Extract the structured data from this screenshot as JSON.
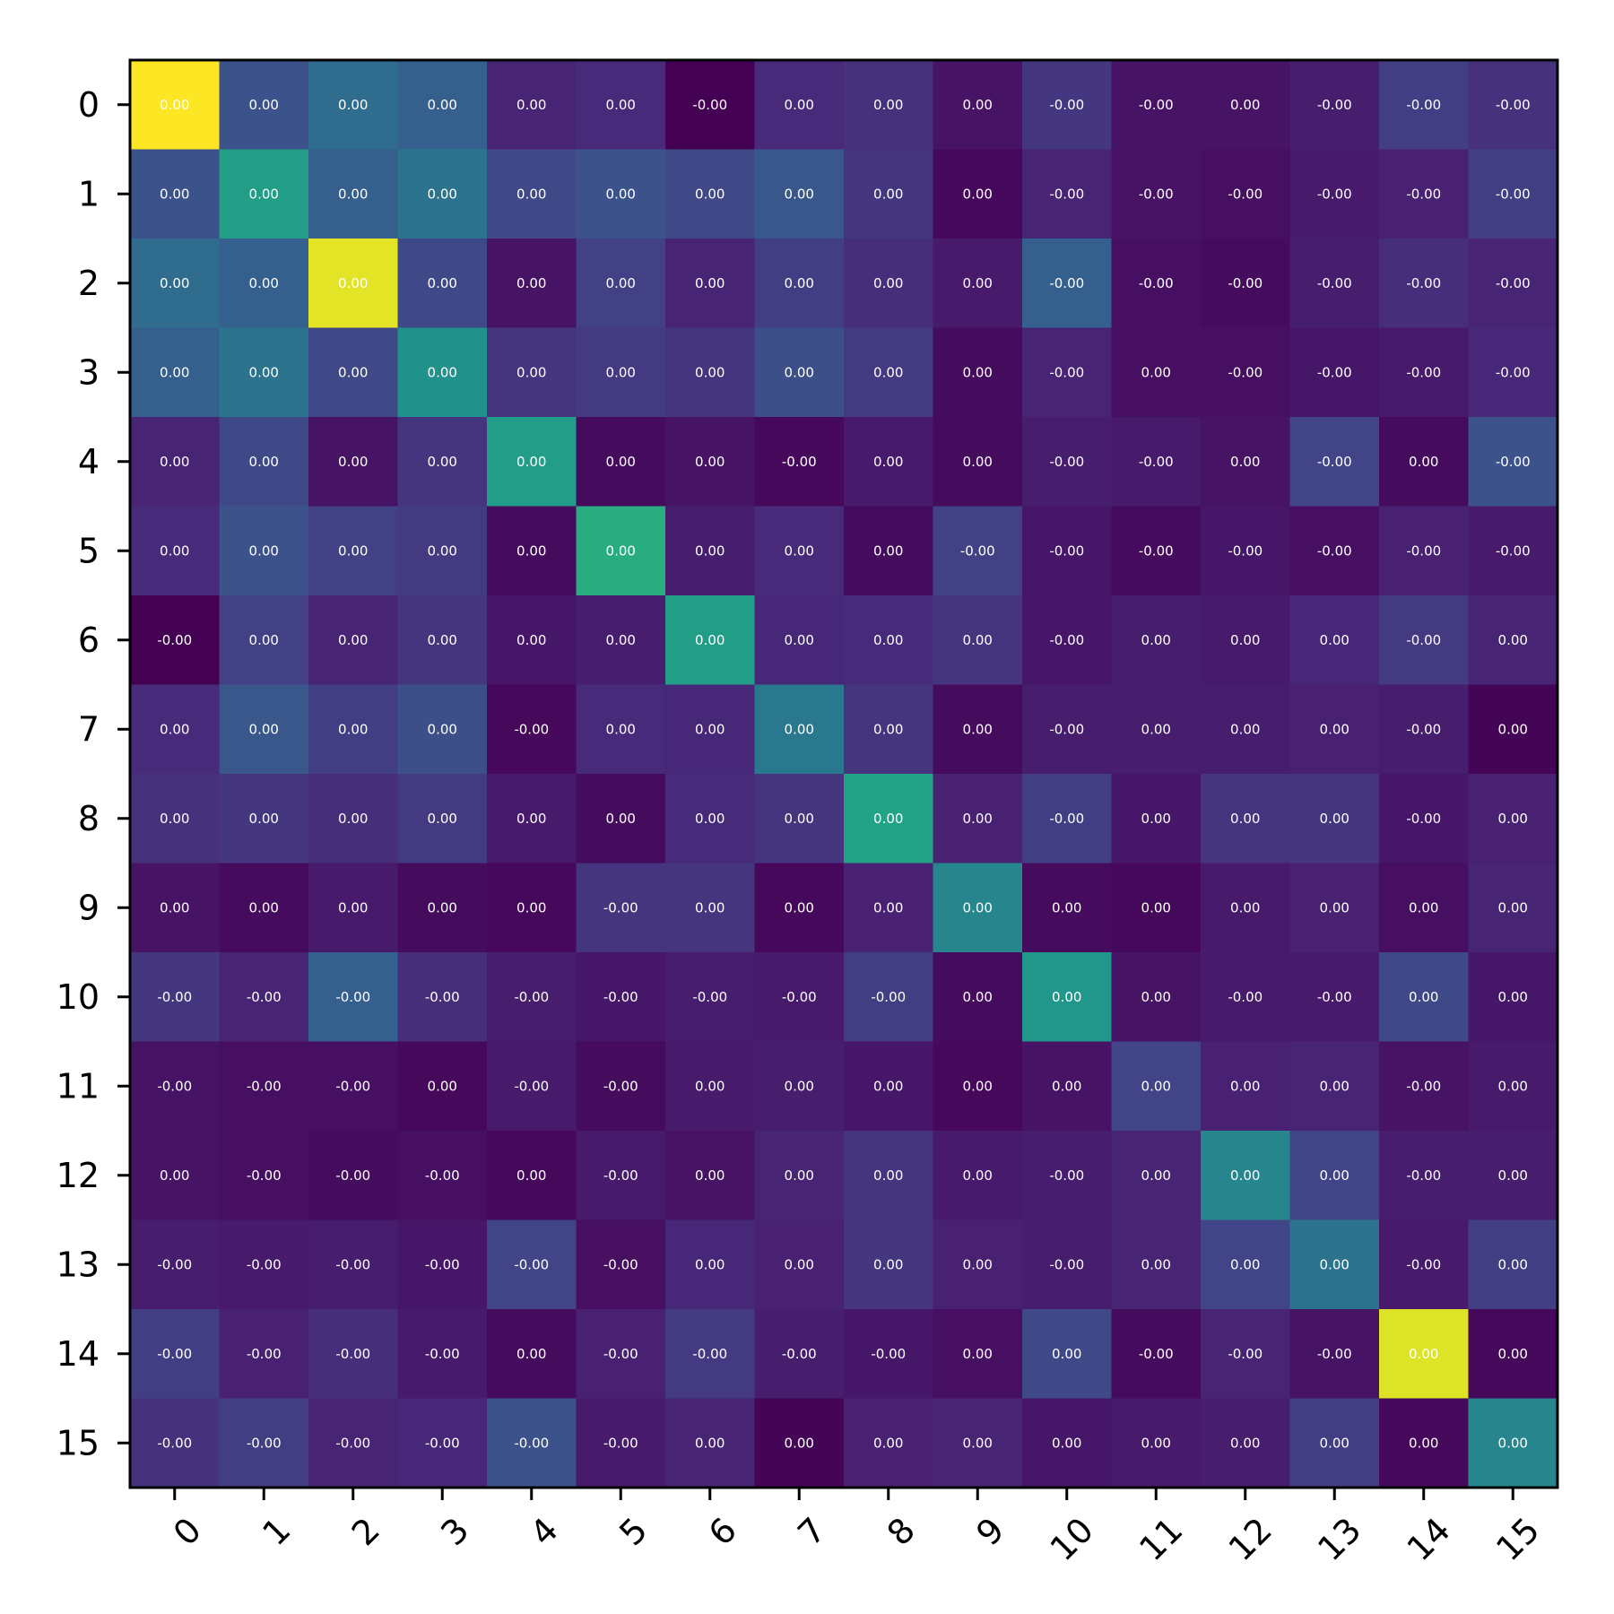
{
  "chart_data": {
    "type": "heatmap",
    "colormap": "viridis",
    "grid": false,
    "x_tick_labels": [
      "0",
      "1",
      "2",
      "3",
      "4",
      "5",
      "6",
      "7",
      "8",
      "9",
      "10",
      "11",
      "12",
      "13",
      "14",
      "15"
    ],
    "y_tick_labels": [
      "0",
      "1",
      "2",
      "3",
      "4",
      "5",
      "6",
      "7",
      "8",
      "9",
      "10",
      "11",
      "12",
      "13",
      "14",
      "15"
    ],
    "color_values": [
      [
        1.0,
        0.25,
        0.35,
        0.3,
        0.1,
        0.12,
        0.0,
        0.12,
        0.14,
        0.05,
        0.16,
        0.05,
        0.05,
        0.08,
        0.18,
        0.14
      ],
      [
        0.25,
        0.55,
        0.3,
        0.38,
        0.22,
        0.25,
        0.22,
        0.27,
        0.16,
        0.02,
        0.1,
        0.05,
        0.04,
        0.07,
        0.09,
        0.18
      ],
      [
        0.35,
        0.3,
        0.96,
        0.22,
        0.05,
        0.19,
        0.1,
        0.18,
        0.13,
        0.07,
        0.3,
        0.04,
        0.03,
        0.08,
        0.13,
        0.1
      ],
      [
        0.3,
        0.38,
        0.22,
        0.5,
        0.15,
        0.17,
        0.15,
        0.24,
        0.17,
        0.03,
        0.1,
        0.04,
        0.04,
        0.06,
        0.07,
        0.11
      ],
      [
        0.1,
        0.22,
        0.05,
        0.15,
        0.55,
        0.03,
        0.05,
        0.02,
        0.07,
        0.03,
        0.08,
        0.07,
        0.05,
        0.2,
        0.03,
        0.25
      ],
      [
        0.12,
        0.25,
        0.19,
        0.17,
        0.03,
        0.62,
        0.08,
        0.12,
        0.03,
        0.19,
        0.06,
        0.03,
        0.06,
        0.04,
        0.09,
        0.07
      ],
      [
        0.0,
        0.19,
        0.1,
        0.15,
        0.06,
        0.08,
        0.55,
        0.11,
        0.12,
        0.15,
        0.06,
        0.08,
        0.07,
        0.11,
        0.17,
        0.1
      ],
      [
        0.12,
        0.27,
        0.18,
        0.24,
        0.02,
        0.12,
        0.11,
        0.4,
        0.15,
        0.03,
        0.08,
        0.08,
        0.08,
        0.09,
        0.08,
        0.01
      ],
      [
        0.14,
        0.16,
        0.13,
        0.17,
        0.07,
        0.03,
        0.12,
        0.15,
        0.58,
        0.09,
        0.18,
        0.06,
        0.15,
        0.16,
        0.06,
        0.09
      ],
      [
        0.05,
        0.03,
        0.07,
        0.03,
        0.02,
        0.15,
        0.15,
        0.02,
        0.09,
        0.45,
        0.03,
        0.02,
        0.07,
        0.09,
        0.04,
        0.1
      ],
      [
        0.16,
        0.1,
        0.3,
        0.13,
        0.08,
        0.06,
        0.08,
        0.07,
        0.18,
        0.03,
        0.52,
        0.05,
        0.07,
        0.07,
        0.22,
        0.06
      ],
      [
        0.05,
        0.04,
        0.04,
        0.02,
        0.07,
        0.03,
        0.07,
        0.08,
        0.06,
        0.02,
        0.05,
        0.2,
        0.09,
        0.1,
        0.05,
        0.07
      ],
      [
        0.05,
        0.04,
        0.03,
        0.04,
        0.02,
        0.07,
        0.05,
        0.1,
        0.15,
        0.07,
        0.08,
        0.1,
        0.45,
        0.2,
        0.08,
        0.08
      ],
      [
        0.08,
        0.07,
        0.08,
        0.06,
        0.2,
        0.04,
        0.11,
        0.09,
        0.16,
        0.09,
        0.08,
        0.1,
        0.2,
        0.38,
        0.07,
        0.18
      ],
      [
        0.18,
        0.09,
        0.13,
        0.07,
        0.03,
        0.09,
        0.17,
        0.08,
        0.06,
        0.04,
        0.22,
        0.03,
        0.1,
        0.05,
        0.95,
        0.02
      ],
      [
        0.14,
        0.18,
        0.1,
        0.11,
        0.25,
        0.07,
        0.1,
        0.01,
        0.09,
        0.1,
        0.06,
        0.07,
        0.08,
        0.18,
        0.02,
        0.45
      ]
    ],
    "cell_labels": [
      [
        "0.00",
        "0.00",
        "0.00",
        "0.00",
        "0.00",
        "0.00",
        "-0.00",
        "0.00",
        "0.00",
        "0.00",
        "-0.00",
        "-0.00",
        "0.00",
        "-0.00",
        "-0.00",
        "-0.00"
      ],
      [
        "0.00",
        "0.00",
        "0.00",
        "0.00",
        "0.00",
        "0.00",
        "0.00",
        "0.00",
        "0.00",
        "0.00",
        "-0.00",
        "-0.00",
        "-0.00",
        "-0.00",
        "-0.00",
        "-0.00"
      ],
      [
        "0.00",
        "0.00",
        "0.00",
        "0.00",
        "0.00",
        "0.00",
        "0.00",
        "0.00",
        "0.00",
        "0.00",
        "-0.00",
        "-0.00",
        "-0.00",
        "-0.00",
        "-0.00",
        "-0.00"
      ],
      [
        "0.00",
        "0.00",
        "0.00",
        "0.00",
        "0.00",
        "0.00",
        "0.00",
        "0.00",
        "0.00",
        "0.00",
        "-0.00",
        "0.00",
        "-0.00",
        "-0.00",
        "-0.00",
        "-0.00"
      ],
      [
        "0.00",
        "0.00",
        "0.00",
        "0.00",
        "0.00",
        "0.00",
        "0.00",
        "-0.00",
        "0.00",
        "0.00",
        "-0.00",
        "-0.00",
        "0.00",
        "-0.00",
        "0.00",
        "-0.00"
      ],
      [
        "0.00",
        "0.00",
        "0.00",
        "0.00",
        "0.00",
        "0.00",
        "0.00",
        "0.00",
        "0.00",
        "-0.00",
        "-0.00",
        "-0.00",
        "-0.00",
        "-0.00",
        "-0.00",
        "-0.00"
      ],
      [
        "-0.00",
        "0.00",
        "0.00",
        "0.00",
        "0.00",
        "0.00",
        "0.00",
        "0.00",
        "0.00",
        "0.00",
        "-0.00",
        "0.00",
        "0.00",
        "0.00",
        "-0.00",
        "0.00"
      ],
      [
        "0.00",
        "0.00",
        "0.00",
        "0.00",
        "-0.00",
        "0.00",
        "0.00",
        "0.00",
        "0.00",
        "0.00",
        "-0.00",
        "0.00",
        "0.00",
        "0.00",
        "-0.00",
        "0.00"
      ],
      [
        "0.00",
        "0.00",
        "0.00",
        "0.00",
        "0.00",
        "0.00",
        "0.00",
        "0.00",
        "0.00",
        "0.00",
        "-0.00",
        "0.00",
        "0.00",
        "0.00",
        "-0.00",
        "0.00"
      ],
      [
        "0.00",
        "0.00",
        "0.00",
        "0.00",
        "0.00",
        "-0.00",
        "0.00",
        "0.00",
        "0.00",
        "0.00",
        "0.00",
        "0.00",
        "0.00",
        "0.00",
        "0.00",
        "0.00"
      ],
      [
        "-0.00",
        "-0.00",
        "-0.00",
        "-0.00",
        "-0.00",
        "-0.00",
        "-0.00",
        "-0.00",
        "-0.00",
        "0.00",
        "0.00",
        "0.00",
        "-0.00",
        "-0.00",
        "0.00",
        "0.00"
      ],
      [
        "-0.00",
        "-0.00",
        "-0.00",
        "0.00",
        "-0.00",
        "-0.00",
        "0.00",
        "0.00",
        "0.00",
        "0.00",
        "0.00",
        "0.00",
        "0.00",
        "0.00",
        "-0.00",
        "0.00"
      ],
      [
        "0.00",
        "-0.00",
        "-0.00",
        "-0.00",
        "0.00",
        "-0.00",
        "0.00",
        "0.00",
        "0.00",
        "0.00",
        "-0.00",
        "0.00",
        "0.00",
        "0.00",
        "-0.00",
        "0.00"
      ],
      [
        "-0.00",
        "-0.00",
        "-0.00",
        "-0.00",
        "-0.00",
        "-0.00",
        "0.00",
        "0.00",
        "0.00",
        "0.00",
        "-0.00",
        "0.00",
        "0.00",
        "0.00",
        "-0.00",
        "0.00"
      ],
      [
        "-0.00",
        "-0.00",
        "-0.00",
        "-0.00",
        "0.00",
        "-0.00",
        "-0.00",
        "-0.00",
        "-0.00",
        "0.00",
        "0.00",
        "-0.00",
        "-0.00",
        "-0.00",
        "0.00",
        "0.00"
      ],
      [
        "-0.00",
        "-0.00",
        "-0.00",
        "-0.00",
        "-0.00",
        "-0.00",
        "0.00",
        "0.00",
        "0.00",
        "0.00",
        "0.00",
        "0.00",
        "0.00",
        "0.00",
        "0.00",
        "0.00"
      ]
    ]
  }
}
